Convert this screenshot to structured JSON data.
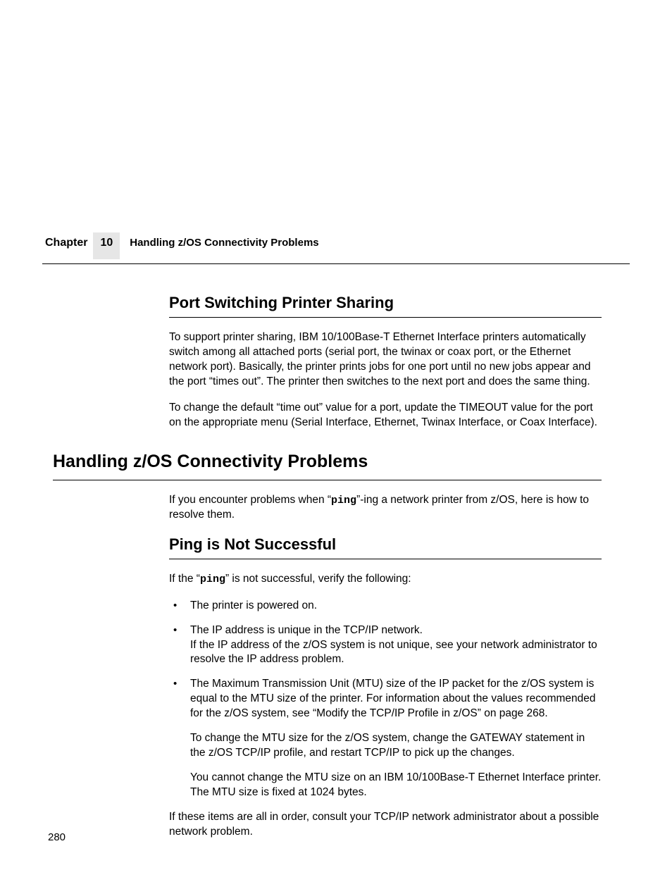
{
  "header": {
    "chapter_label": "Chapter",
    "chapter_number": "10",
    "title": "Handling z/OS Connectivity Problems"
  },
  "section1": {
    "heading": "Port Switching Printer Sharing",
    "p1": "To support printer sharing, IBM 10/100Base-T Ethernet Interface printers automatically switch among all attached ports (serial port, the twinax or coax port, or the Ethernet network port). Basically, the printer prints jobs for one port until no new jobs appear and the port “times out”. The printer then switches to the next port and does the same thing.",
    "p2": "To change the default “time out” value for a port, update the TIMEOUT value for the port on the appropriate menu (Serial Interface, Ethernet, Twinax Interface, or Coax Interface)."
  },
  "section2": {
    "heading": "Handling z/OS Connectivity Problems",
    "intro_pre": "If you encounter problems when “",
    "intro_mono": "ping",
    "intro_post": "”-ing a network printer from z/OS, here is how to resolve them."
  },
  "section3": {
    "heading": "Ping is Not Successful",
    "lead_pre": "If the “",
    "lead_mono": "ping",
    "lead_post": "” is not successful, verify the following:",
    "b1": "The printer is powered on.",
    "b2a": "The IP address is unique in the TCP/IP network.",
    "b2b": "If the IP address of the z/OS system is not unique, see your network administrator to resolve the IP address problem.",
    "b3a": "The Maximum Transmission Unit (MTU) size of the IP packet for the z/OS system is equal to the MTU size of the printer. For information about the values recommended for the z/OS system, see “Modify the TCP/IP Profile in z/OS” on page 268.",
    "b3b": "To change the MTU size for the z/OS system, change the GATEWAY statement in the z/OS TCP/IP profile, and restart TCP/IP to pick up the changes.",
    "b3c": "You cannot change the MTU size on an IBM 10/100Base-T Ethernet Interface printer. The MTU size is fixed at 1024 bytes.",
    "closing": "If these items are all in order, consult your TCP/IP network administrator about a possible network problem."
  },
  "page_number": "280"
}
